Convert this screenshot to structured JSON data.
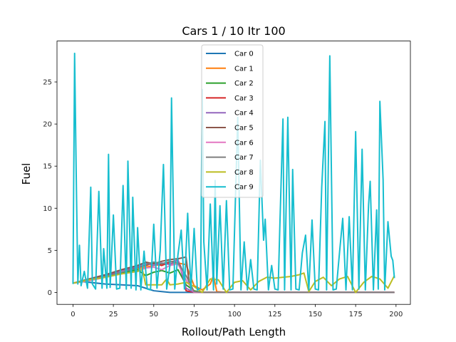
{
  "chart_data": {
    "type": "line",
    "title": "Cars 1 / 10 Itr 100",
    "xlabel": "Rollout/Path Length",
    "ylabel": "Fuel",
    "xlim": [
      -9.9,
      208.9
    ],
    "ylim": [
      -1.42,
      29.86
    ],
    "xticks": [
      0,
      25,
      50,
      75,
      100,
      125,
      150,
      175,
      200
    ],
    "yticks": [
      0,
      5,
      10,
      15,
      20,
      25
    ],
    "legend_position": "upper center",
    "series": [
      {
        "name": "Car 0",
        "color": "#1f77b4",
        "points": [
          [
            0,
            1.1
          ],
          [
            5,
            1.3
          ],
          [
            10,
            1.2
          ],
          [
            20,
            1.0
          ],
          [
            30,
            0.9
          ],
          [
            40,
            0.8
          ],
          [
            45,
            0.5
          ],
          [
            50,
            0.2
          ],
          [
            55,
            0.1
          ],
          [
            60,
            0.0
          ],
          [
            70,
            0.0
          ],
          [
            80,
            0.0
          ],
          [
            100,
            0.0
          ],
          [
            150,
            0.0
          ],
          [
            199,
            0.0
          ]
        ]
      },
      {
        "name": "Car 1",
        "color": "#ff7f0e",
        "points": [
          [
            0,
            1.1
          ],
          [
            10,
            1.5
          ],
          [
            20,
            1.9
          ],
          [
            30,
            2.3
          ],
          [
            40,
            2.8
          ],
          [
            45,
            3.0
          ],
          [
            50,
            3.2
          ],
          [
            55,
            3.3
          ],
          [
            60,
            3.4
          ],
          [
            65,
            3.5
          ],
          [
            70,
            3.3
          ],
          [
            75,
            0.8
          ],
          [
            80,
            0.3
          ],
          [
            85,
            1.0
          ],
          [
            87,
            2.0
          ],
          [
            89,
            0.1
          ],
          [
            95,
            0.0
          ],
          [
            199,
            0.0
          ]
        ]
      },
      {
        "name": "Car 2",
        "color": "#2ca02c",
        "points": [
          [
            0,
            1.1
          ],
          [
            10,
            1.4
          ],
          [
            20,
            1.8
          ],
          [
            30,
            2.3
          ],
          [
            40,
            2.7
          ],
          [
            45,
            2.0
          ],
          [
            50,
            2.4
          ],
          [
            55,
            2.6
          ],
          [
            60,
            2.3
          ],
          [
            65,
            2.7
          ],
          [
            70,
            0.9
          ],
          [
            75,
            0.2
          ],
          [
            80,
            0.0
          ],
          [
            199,
            0.0
          ]
        ]
      },
      {
        "name": "Car 3",
        "color": "#d62728",
        "points": [
          [
            0,
            1.1
          ],
          [
            10,
            1.5
          ],
          [
            20,
            2.0
          ],
          [
            30,
            2.6
          ],
          [
            40,
            3.0
          ],
          [
            45,
            3.2
          ],
          [
            50,
            3.5
          ],
          [
            55,
            3.2
          ],
          [
            60,
            3.6
          ],
          [
            65,
            3.8
          ],
          [
            68,
            2.5
          ],
          [
            70,
            0.2
          ],
          [
            75,
            0.0
          ],
          [
            199,
            0.0
          ]
        ]
      },
      {
        "name": "Car 4",
        "color": "#9467bd",
        "points": [
          [
            0,
            1.1
          ],
          [
            10,
            1.6
          ],
          [
            20,
            2.1
          ],
          [
            30,
            2.6
          ],
          [
            40,
            3.1
          ],
          [
            45,
            3.5
          ],
          [
            50,
            3.2
          ],
          [
            55,
            3.5
          ],
          [
            60,
            3.3
          ],
          [
            65,
            3.9
          ],
          [
            70,
            0.5
          ],
          [
            75,
            0.0
          ],
          [
            199,
            0.0
          ]
        ]
      },
      {
        "name": "Car 5",
        "color": "#8c564b",
        "points": [
          [
            0,
            1.1
          ],
          [
            10,
            1.6
          ],
          [
            20,
            2.1
          ],
          [
            30,
            2.7
          ],
          [
            40,
            3.2
          ],
          [
            45,
            3.6
          ],
          [
            50,
            3.4
          ],
          [
            55,
            3.7
          ],
          [
            60,
            3.9
          ],
          [
            65,
            4.0
          ],
          [
            70,
            4.2
          ],
          [
            72,
            1.0
          ],
          [
            75,
            0.0
          ],
          [
            199,
            0.0
          ]
        ]
      },
      {
        "name": "Car 6",
        "color": "#e377c2",
        "points": [
          [
            0,
            1.1
          ],
          [
            10,
            1.4
          ],
          [
            20,
            1.8
          ],
          [
            30,
            2.2
          ],
          [
            40,
            2.5
          ],
          [
            45,
            2.9
          ],
          [
            50,
            3.0
          ],
          [
            55,
            2.7
          ],
          [
            60,
            3.2
          ],
          [
            65,
            3.4
          ],
          [
            70,
            1.5
          ],
          [
            75,
            0.0
          ],
          [
            199,
            0.0
          ]
        ]
      },
      {
        "name": "Car 7",
        "color": "#7f7f7f",
        "points": [
          [
            0,
            1.1
          ],
          [
            10,
            1.5
          ],
          [
            20,
            1.9
          ],
          [
            30,
            2.4
          ],
          [
            40,
            2.9
          ],
          [
            45,
            3.3
          ],
          [
            50,
            3.6
          ],
          [
            55,
            3.4
          ],
          [
            60,
            3.7
          ],
          [
            65,
            3.5
          ],
          [
            70,
            2.0
          ],
          [
            75,
            0.1
          ],
          [
            80,
            0.0
          ],
          [
            199,
            0.0
          ]
        ]
      },
      {
        "name": "Car 8",
        "color": "#bcbd22",
        "points": [
          [
            0,
            1.1
          ],
          [
            10,
            1.5
          ],
          [
            20,
            1.8
          ],
          [
            30,
            2.2
          ],
          [
            40,
            2.5
          ],
          [
            43,
            2.7
          ],
          [
            45,
            0.9
          ],
          [
            50,
            0.9
          ],
          [
            55,
            0.9
          ],
          [
            58,
            1.6
          ],
          [
            60,
            0.9
          ],
          [
            65,
            1.0
          ],
          [
            70,
            1.2
          ],
          [
            75,
            0.7
          ],
          [
            80,
            0.0
          ],
          [
            85,
            1.6
          ],
          [
            90,
            1.5
          ],
          [
            95,
            0.0
          ],
          [
            100,
            1.2
          ],
          [
            105,
            1.4
          ],
          [
            110,
            0.3
          ],
          [
            115,
            1.3
          ],
          [
            120,
            1.8
          ],
          [
            125,
            1.7
          ],
          [
            130,
            1.8
          ],
          [
            135,
            1.9
          ],
          [
            140,
            2.1
          ],
          [
            143,
            2.3
          ],
          [
            146,
            0.1
          ],
          [
            150,
            1.3
          ],
          [
            155,
            1.8
          ],
          [
            160,
            0.8
          ],
          [
            165,
            1.6
          ],
          [
            170,
            1.9
          ],
          [
            175,
            0.0
          ],
          [
            180,
            1.2
          ],
          [
            185,
            1.9
          ],
          [
            190,
            1.6
          ],
          [
            195,
            0.5
          ],
          [
            199,
            2.0
          ]
        ]
      },
      {
        "name": "Car 9",
        "color": "#17becf",
        "points": [
          [
            0,
            1.0
          ],
          [
            1,
            28.4
          ],
          [
            2,
            14.0
          ],
          [
            3,
            1.0
          ],
          [
            4,
            5.6
          ],
          [
            5,
            0.8
          ],
          [
            7,
            2.5
          ],
          [
            9,
            0.5
          ],
          [
            11,
            12.5
          ],
          [
            12,
            1.0
          ],
          [
            14,
            0.4
          ],
          [
            16,
            12.0
          ],
          [
            18,
            0.5
          ],
          [
            19,
            5.2
          ],
          [
            21,
            0.5
          ],
          [
            22,
            16.4
          ],
          [
            23,
            0.6
          ],
          [
            25,
            9.2
          ],
          [
            27,
            0.4
          ],
          [
            29,
            0.5
          ],
          [
            31,
            12.7
          ],
          [
            33,
            0.4
          ],
          [
            34,
            15.6
          ],
          [
            36,
            0.5
          ],
          [
            37,
            11.3
          ],
          [
            39,
            0.3
          ],
          [
            40,
            7.7
          ],
          [
            42,
            0.3
          ],
          [
            44,
            4.9
          ],
          [
            46,
            0.4
          ],
          [
            48,
            0.3
          ],
          [
            50,
            8.1
          ],
          [
            52,
            0.5
          ],
          [
            54,
            5.0
          ],
          [
            56,
            15.2
          ],
          [
            58,
            0.4
          ],
          [
            60,
            3.2
          ],
          [
            61,
            23.1
          ],
          [
            63,
            0.4
          ],
          [
            65,
            4.5
          ],
          [
            67,
            7.4
          ],
          [
            69,
            0.4
          ],
          [
            71,
            9.4
          ],
          [
            73,
            0.3
          ],
          [
            75,
            7.6
          ],
          [
            77,
            0.3
          ],
          [
            79,
            0.5
          ],
          [
            80,
            24.1
          ],
          [
            81,
            6.0
          ],
          [
            83,
            0.3
          ],
          [
            85,
            10.5
          ],
          [
            87,
            0.3
          ],
          [
            88,
            13.3
          ],
          [
            89,
            1.0
          ],
          [
            91,
            10.3
          ],
          [
            93,
            0.4
          ],
          [
            95,
            10.9
          ],
          [
            97,
            0.3
          ],
          [
            99,
            0.4
          ],
          [
            102,
            20.8
          ],
          [
            104,
            0.3
          ],
          [
            106,
            6.0
          ],
          [
            108,
            0.3
          ],
          [
            110,
            3.9
          ],
          [
            112,
            0.4
          ],
          [
            114,
            0.3
          ],
          [
            116,
            15.7
          ],
          [
            118,
            6.2
          ],
          [
            119,
            8.7
          ],
          [
            121,
            0.3
          ],
          [
            123,
            3.2
          ],
          [
            125,
            0.4
          ],
          [
            127,
            0.3
          ],
          [
            128,
            7.4
          ],
          [
            130,
            20.6
          ],
          [
            131,
            0.3
          ],
          [
            133,
            20.8
          ],
          [
            135,
            0.3
          ],
          [
            136,
            14.6
          ],
          [
            138,
            0.4
          ],
          [
            140,
            0.3
          ],
          [
            142,
            4.7
          ],
          [
            144,
            6.8
          ],
          [
            146,
            0.3
          ],
          [
            148,
            8.6
          ],
          [
            150,
            0.4
          ],
          [
            152,
            0.3
          ],
          [
            154,
            12.5
          ],
          [
            156,
            20.3
          ],
          [
            157,
            0.3
          ],
          [
            159,
            28.1
          ],
          [
            161,
            0.3
          ],
          [
            163,
            0.4
          ],
          [
            165,
            4.7
          ],
          [
            167,
            8.8
          ],
          [
            169,
            0.3
          ],
          [
            171,
            9.0
          ],
          [
            173,
            0.3
          ],
          [
            175,
            19.1
          ],
          [
            177,
            0.4
          ],
          [
            179,
            17.0
          ],
          [
            181,
            0.3
          ],
          [
            183,
            10.4
          ],
          [
            184,
            13.2
          ],
          [
            186,
            0.3
          ],
          [
            188,
            9.8
          ],
          [
            189,
            0.4
          ],
          [
            190,
            22.7
          ],
          [
            192,
            13.4
          ],
          [
            193,
            0.3
          ],
          [
            195,
            8.4
          ],
          [
            197,
            4.3
          ],
          [
            198,
            3.8
          ],
          [
            199,
            1.7
          ]
        ]
      }
    ]
  }
}
